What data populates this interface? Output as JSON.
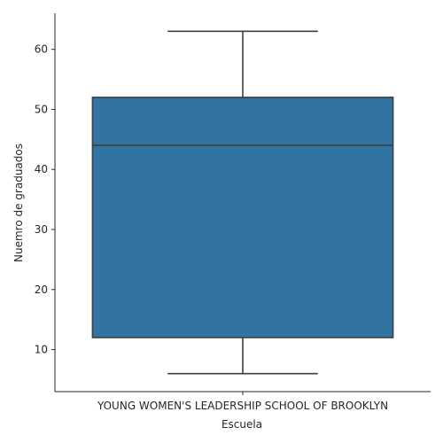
{
  "chart_data": {
    "type": "box",
    "xlabel": "Escuela",
    "ylabel": "Nuemro de graduados",
    "categories": [
      "YOUNG WOMEN'S LEADERSHIP SCHOOL OF BROOKLYN"
    ],
    "boxes": [
      {
        "category": "YOUNG WOMEN'S LEADERSHIP SCHOOL OF BROOKLYN",
        "whisker_low": 6,
        "q1": 12,
        "median": 44,
        "q3": 52,
        "whisker_high": 63
      }
    ],
    "ylim": [
      3,
      66
    ],
    "yticks": [
      10,
      20,
      30,
      40,
      50,
      60
    ],
    "grid": false,
    "legend": "none",
    "colors": {
      "box_fill": "#3274a1",
      "line": "#3f3f3f",
      "axis": "#262626"
    }
  }
}
